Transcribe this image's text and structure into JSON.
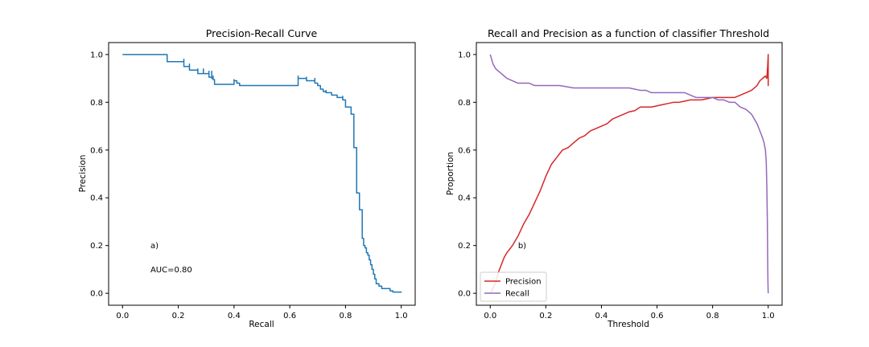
{
  "chart_data": [
    {
      "type": "line",
      "title": "Precision-Recall Curve",
      "xlabel": "Recall",
      "ylabel": "Precision",
      "xlim": [
        -0.05,
        1.05
      ],
      "ylim": [
        -0.05,
        1.05
      ],
      "xticks": [
        0.0,
        0.2,
        0.4,
        0.6,
        0.8,
        1.0
      ],
      "yticks": [
        0.0,
        0.2,
        0.4,
        0.6,
        0.8,
        1.0
      ],
      "grid": false,
      "annotations": [
        {
          "text": "a)",
          "x": 0.1,
          "y": 0.2
        },
        {
          "text": "AUC=0.80",
          "x": 0.1,
          "y": 0.1
        }
      ],
      "series": [
        {
          "color": "#1f77b4",
          "step": "post",
          "x": [
            0.0,
            0.16,
            0.16,
            0.22,
            0.22,
            0.24,
            0.24,
            0.27,
            0.27,
            0.29,
            0.29,
            0.31,
            0.31,
            0.32,
            0.32,
            0.325,
            0.325,
            0.33,
            0.33,
            0.4,
            0.4,
            0.41,
            0.41,
            0.42,
            0.42,
            0.63,
            0.63,
            0.66,
            0.66,
            0.69,
            0.69,
            0.7,
            0.7,
            0.71,
            0.71,
            0.72,
            0.72,
            0.73,
            0.73,
            0.75,
            0.75,
            0.77,
            0.77,
            0.79,
            0.79,
            0.8,
            0.8,
            0.82,
            0.82,
            0.83,
            0.83,
            0.84,
            0.84,
            0.85,
            0.85,
            0.86,
            0.86,
            0.865,
            0.865,
            0.87,
            0.87,
            0.875,
            0.875,
            0.88,
            0.88,
            0.885,
            0.885,
            0.89,
            0.89,
            0.895,
            0.895,
            0.9,
            0.9,
            0.905,
            0.905,
            0.91,
            0.91,
            0.92,
            0.92,
            0.93,
            0.93,
            0.96,
            0.96,
            0.97,
            0.97,
            1.0
          ],
          "y": [
            1.0,
            1.0,
            0.97,
            0.98,
            0.95,
            0.96,
            0.935,
            0.94,
            0.92,
            0.94,
            0.92,
            0.93,
            0.905,
            0.93,
            0.9,
            0.91,
            0.895,
            0.885,
            0.875,
            0.895,
            0.89,
            0.89,
            0.88,
            0.88,
            0.87,
            0.91,
            0.9,
            0.905,
            0.89,
            0.9,
            0.88,
            0.88,
            0.87,
            0.87,
            0.855,
            0.855,
            0.845,
            0.85,
            0.84,
            0.84,
            0.83,
            0.83,
            0.82,
            0.825,
            0.81,
            0.8,
            0.78,
            0.78,
            0.75,
            0.75,
            0.61,
            0.61,
            0.42,
            0.42,
            0.35,
            0.35,
            0.23,
            0.23,
            0.2,
            0.2,
            0.19,
            0.19,
            0.17,
            0.17,
            0.16,
            0.16,
            0.14,
            0.14,
            0.12,
            0.12,
            0.1,
            0.1,
            0.08,
            0.08,
            0.06,
            0.06,
            0.04,
            0.04,
            0.03,
            0.03,
            0.02,
            0.02,
            0.01,
            0.01,
            0.005,
            0.003
          ]
        }
      ]
    },
    {
      "type": "line",
      "title": "Recall and Precision as a function of classifier Threshold",
      "xlabel": "Threshold",
      "ylabel": "Proportion",
      "xlim": [
        -0.05,
        1.05
      ],
      "ylim": [
        -0.05,
        1.05
      ],
      "xticks": [
        0.0,
        0.2,
        0.4,
        0.6,
        0.8,
        1.0
      ],
      "yticks": [
        0.0,
        0.2,
        0.4,
        0.6,
        0.8,
        1.0
      ],
      "grid": false,
      "legend": "bottom-left",
      "annotations": [
        {
          "text": "b)",
          "x": 0.1,
          "y": 0.2
        }
      ],
      "series": [
        {
          "name": "Precision",
          "color": "#d62728",
          "x": [
            0.0,
            0.01,
            0.02,
            0.03,
            0.04,
            0.05,
            0.06,
            0.08,
            0.1,
            0.12,
            0.14,
            0.16,
            0.18,
            0.2,
            0.22,
            0.24,
            0.26,
            0.28,
            0.3,
            0.32,
            0.34,
            0.36,
            0.38,
            0.4,
            0.42,
            0.44,
            0.46,
            0.48,
            0.5,
            0.52,
            0.54,
            0.56,
            0.58,
            0.6,
            0.62,
            0.64,
            0.66,
            0.68,
            0.7,
            0.72,
            0.74,
            0.76,
            0.78,
            0.8,
            0.82,
            0.84,
            0.86,
            0.88,
            0.9,
            0.92,
            0.94,
            0.96,
            0.97,
            0.98,
            0.99,
            0.995,
            0.998,
            1.0,
            1.0,
            1.0
          ],
          "y": [
            0.0,
            0.02,
            0.05,
            0.09,
            0.12,
            0.15,
            0.17,
            0.2,
            0.24,
            0.29,
            0.33,
            0.38,
            0.43,
            0.49,
            0.54,
            0.57,
            0.6,
            0.61,
            0.63,
            0.65,
            0.66,
            0.68,
            0.69,
            0.7,
            0.71,
            0.73,
            0.74,
            0.75,
            0.76,
            0.765,
            0.78,
            0.78,
            0.78,
            0.785,
            0.79,
            0.795,
            0.8,
            0.8,
            0.805,
            0.81,
            0.81,
            0.81,
            0.815,
            0.82,
            0.82,
            0.82,
            0.82,
            0.82,
            0.83,
            0.84,
            0.85,
            0.87,
            0.89,
            0.9,
            0.91,
            0.9,
            0.95,
            1.0,
            0.87,
            0.95
          ]
        },
        {
          "name": "Recall",
          "color": "#9467bd",
          "x": [
            0.0,
            0.005,
            0.01,
            0.015,
            0.02,
            0.03,
            0.04,
            0.05,
            0.06,
            0.08,
            0.1,
            0.12,
            0.14,
            0.16,
            0.18,
            0.2,
            0.25,
            0.3,
            0.35,
            0.4,
            0.45,
            0.5,
            0.52,
            0.54,
            0.56,
            0.58,
            0.6,
            0.65,
            0.7,
            0.72,
            0.74,
            0.76,
            0.78,
            0.8,
            0.82,
            0.84,
            0.86,
            0.88,
            0.9,
            0.92,
            0.94,
            0.96,
            0.97,
            0.98,
            0.985,
            0.99,
            0.993,
            0.995,
            0.997,
            0.998,
            0.999,
            1.0
          ],
          "y": [
            1.0,
            0.98,
            0.96,
            0.95,
            0.94,
            0.93,
            0.92,
            0.91,
            0.9,
            0.89,
            0.88,
            0.88,
            0.88,
            0.87,
            0.87,
            0.87,
            0.87,
            0.86,
            0.86,
            0.86,
            0.86,
            0.86,
            0.855,
            0.85,
            0.85,
            0.84,
            0.84,
            0.84,
            0.84,
            0.83,
            0.82,
            0.82,
            0.82,
            0.82,
            0.81,
            0.81,
            0.8,
            0.8,
            0.78,
            0.77,
            0.75,
            0.71,
            0.68,
            0.65,
            0.63,
            0.6,
            0.55,
            0.45,
            0.3,
            0.15,
            0.05,
            0.0
          ]
        }
      ]
    }
  ]
}
